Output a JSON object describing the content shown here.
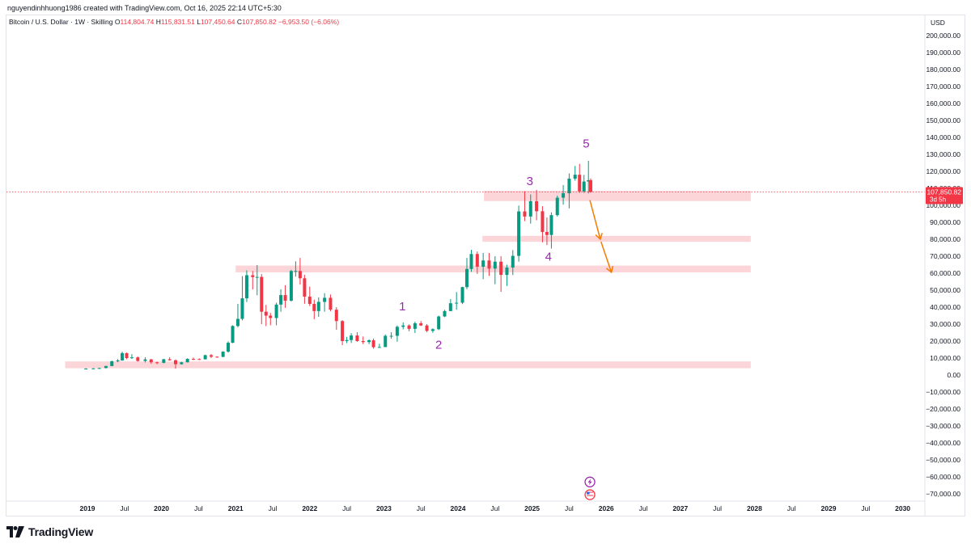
{
  "header": {
    "attribution": "nguyendinhhuong1986 created with TradingView.com, Oct 16, 2025 22:14 UTC+5:30"
  },
  "legend": {
    "symbol": "Bitcoin / U.S. Dollar · 1W · Skilling",
    "o_label": "O",
    "o_value": "114,804.74",
    "h_label": "H",
    "h_value": "115,831.51",
    "l_label": "L",
    "l_value": "107,450.64",
    "c_label": "C",
    "c_value": "107,850.82",
    "change": "−6,953.50 (−6.06%)"
  },
  "footer": {
    "brand": "TradingView"
  },
  "colors": {
    "up": "#089981",
    "down": "#f23645",
    "zone": "#f9c7cb",
    "wave_label": "#9c27b0",
    "arrow": "#f57c00",
    "price_line": "#f23645"
  },
  "chart_data": {
    "type": "candlestick",
    "currency_label": "USD",
    "y_ticks": [
      "200,000.00",
      "190,000.00",
      "180,000.00",
      "170,000.00",
      "160,000.00",
      "150,000.00",
      "140,000.00",
      "130,000.00",
      "120,000.00",
      "110,000.00",
      "100,000.00",
      "90,000.00",
      "80,000.00",
      "70,000.00",
      "60,000.00",
      "50,000.00",
      "40,000.00",
      "30,000.00",
      "20,000.00",
      "10,000.00",
      "0.00",
      "−10,000.00",
      "−20,000.00",
      "−30,000.00",
      "−40,000.00",
      "−50,000.00",
      "−60,000.00",
      "−70,000.00"
    ],
    "y_tick_values": [
      200000,
      190000,
      180000,
      170000,
      160000,
      150000,
      140000,
      130000,
      120000,
      110000,
      100000,
      90000,
      80000,
      70000,
      60000,
      50000,
      40000,
      30000,
      20000,
      10000,
      0,
      -10000,
      -20000,
      -30000,
      -40000,
      -50000,
      -60000,
      -70000
    ],
    "x_ticks": [
      {
        "t": 2019.0,
        "label": "2019"
      },
      {
        "t": 2019.5,
        "label": "Jul"
      },
      {
        "t": 2020.0,
        "label": "2020"
      },
      {
        "t": 2020.5,
        "label": "Jul"
      },
      {
        "t": 2021.0,
        "label": "2021"
      },
      {
        "t": 2021.5,
        "label": "Jul"
      },
      {
        "t": 2022.0,
        "label": "2022"
      },
      {
        "t": 2022.5,
        "label": "Jul"
      },
      {
        "t": 2023.0,
        "label": "2023"
      },
      {
        "t": 2023.5,
        "label": "Jul"
      },
      {
        "t": 2024.0,
        "label": "2024"
      },
      {
        "t": 2024.5,
        "label": "Jul"
      },
      {
        "t": 2025.0,
        "label": "2025"
      },
      {
        "t": 2025.5,
        "label": "Jul"
      },
      {
        "t": 2026.0,
        "label": "2026"
      },
      {
        "t": 2026.5,
        "label": "Jul"
      },
      {
        "t": 2027.0,
        "label": "2027"
      },
      {
        "t": 2027.5,
        "label": "Jul"
      },
      {
        "t": 2028.0,
        "label": "2028"
      },
      {
        "t": 2028.5,
        "label": "Jul"
      },
      {
        "t": 2029.0,
        "label": "2029"
      },
      {
        "t": 2029.5,
        "label": "Jul"
      },
      {
        "t": 2030.0,
        "label": "2030"
      }
    ],
    "last_price": {
      "value": 107850.82,
      "label": "107,850.82",
      "countdown": "3d 5h"
    },
    "zones": [
      {
        "t1": 2024.35,
        "t2": 2027.95,
        "low": 102500,
        "high": 108500
      },
      {
        "t1": 2024.33,
        "t2": 2027.95,
        "low": 78500,
        "high": 82000
      },
      {
        "t1": 2021.0,
        "t2": 2027.95,
        "low": 60500,
        "high": 64500
      },
      {
        "t1": 2018.7,
        "t2": 2027.95,
        "low": 4000,
        "high": 8000
      }
    ],
    "wave_labels": [
      {
        "text": "1",
        "t": 2023.25,
        "v": 38000
      },
      {
        "text": "2",
        "t": 2023.74,
        "v": 15500
      },
      {
        "text": "3",
        "t": 2024.97,
        "v": 112000
      },
      {
        "text": "4",
        "t": 2025.22,
        "v": 67500
      },
      {
        "text": "5",
        "t": 2025.73,
        "v": 134000
      }
    ],
    "arrows": [
      {
        "t1": 2025.78,
        "v1": 103000,
        "t2": 2025.92,
        "v2": 80000
      },
      {
        "t1": 2025.93,
        "v1": 78500,
        "t2": 2026.07,
        "v2": 60500
      }
    ],
    "event_icons": [
      {
        "name": "lightning-event",
        "t": 2025.78,
        "v": -63000
      },
      {
        "name": "us-flag-event",
        "t": 2025.78,
        "v": -70500
      }
    ],
    "candles": [
      {
        "t": 2018.98,
        "o": 3700,
        "h": 4000,
        "l": 3400,
        "c": 3800
      },
      {
        "t": 2019.08,
        "o": 3800,
        "h": 4100,
        "l": 3500,
        "c": 3900
      },
      {
        "t": 2019.16,
        "o": 3900,
        "h": 4300,
        "l": 3700,
        "c": 4100
      },
      {
        "t": 2019.25,
        "o": 4100,
        "h": 5400,
        "l": 4000,
        "c": 5300
      },
      {
        "t": 2019.33,
        "o": 5300,
        "h": 8500,
        "l": 5200,
        "c": 8100
      },
      {
        "t": 2019.41,
        "o": 8100,
        "h": 9400,
        "l": 7500,
        "c": 8600
      },
      {
        "t": 2019.47,
        "o": 8600,
        "h": 13800,
        "l": 8400,
        "c": 12900
      },
      {
        "t": 2019.53,
        "o": 12900,
        "h": 13200,
        "l": 9300,
        "c": 10000
      },
      {
        "t": 2019.6,
        "o": 10000,
        "h": 12300,
        "l": 9500,
        "c": 10400
      },
      {
        "t": 2019.68,
        "o": 10400,
        "h": 10900,
        "l": 7900,
        "c": 8300
      },
      {
        "t": 2019.78,
        "o": 8300,
        "h": 10500,
        "l": 7400,
        "c": 9200
      },
      {
        "t": 2019.86,
        "o": 9200,
        "h": 9500,
        "l": 6600,
        "c": 7500
      },
      {
        "t": 2019.94,
        "o": 7500,
        "h": 7900,
        "l": 6400,
        "c": 7200
      },
      {
        "t": 2020.03,
        "o": 7200,
        "h": 9500,
        "l": 6900,
        "c": 9300
      },
      {
        "t": 2020.11,
        "o": 9300,
        "h": 10500,
        "l": 8500,
        "c": 8700
      },
      {
        "t": 2020.19,
        "o": 8700,
        "h": 9200,
        "l": 3800,
        "c": 6400
      },
      {
        "t": 2020.27,
        "o": 6400,
        "h": 7800,
        "l": 6100,
        "c": 7500
      },
      {
        "t": 2020.35,
        "o": 7500,
        "h": 9900,
        "l": 7400,
        "c": 9500
      },
      {
        "t": 2020.43,
        "o": 9500,
        "h": 10300,
        "l": 8800,
        "c": 9400
      },
      {
        "t": 2020.51,
        "o": 9400,
        "h": 9800,
        "l": 8900,
        "c": 9300
      },
      {
        "t": 2020.59,
        "o": 9300,
        "h": 12000,
        "l": 9100,
        "c": 11700
      },
      {
        "t": 2020.67,
        "o": 11700,
        "h": 12400,
        "l": 10000,
        "c": 10800
      },
      {
        "t": 2020.75,
        "o": 10800,
        "h": 11000,
        "l": 10200,
        "c": 10700
      },
      {
        "t": 2020.83,
        "o": 10700,
        "h": 14000,
        "l": 10500,
        "c": 13800
      },
      {
        "t": 2020.9,
        "o": 13800,
        "h": 19800,
        "l": 13200,
        "c": 19000
      },
      {
        "t": 2020.96,
        "o": 19000,
        "h": 29300,
        "l": 18800,
        "c": 28900
      },
      {
        "t": 2021.03,
        "o": 28900,
        "h": 41900,
        "l": 28100,
        "c": 33100
      },
      {
        "t": 2021.09,
        "o": 33100,
        "h": 58300,
        "l": 32200,
        "c": 45200
      },
      {
        "t": 2021.15,
        "o": 45200,
        "h": 61700,
        "l": 43000,
        "c": 58800
      },
      {
        "t": 2021.23,
        "o": 58800,
        "h": 61300,
        "l": 50400,
        "c": 57700
      },
      {
        "t": 2021.29,
        "o": 57700,
        "h": 64800,
        "l": 47000,
        "c": 57800
      },
      {
        "t": 2021.35,
        "o": 57800,
        "h": 59500,
        "l": 30000,
        "c": 37300
      },
      {
        "t": 2021.41,
        "o": 37300,
        "h": 41300,
        "l": 28800,
        "c": 35000
      },
      {
        "t": 2021.47,
        "o": 35000,
        "h": 36600,
        "l": 29300,
        "c": 33600
      },
      {
        "t": 2021.55,
        "o": 33600,
        "h": 42600,
        "l": 29300,
        "c": 41500
      },
      {
        "t": 2021.61,
        "o": 41500,
        "h": 50500,
        "l": 37300,
        "c": 47100
      },
      {
        "t": 2021.67,
        "o": 47100,
        "h": 52900,
        "l": 39600,
        "c": 43800
      },
      {
        "t": 2021.75,
        "o": 43800,
        "h": 62000,
        "l": 43300,
        "c": 61300
      },
      {
        "t": 2021.81,
        "o": 61300,
        "h": 67000,
        "l": 58000,
        "c": 61300
      },
      {
        "t": 2021.87,
        "o": 61300,
        "h": 69000,
        "l": 53300,
        "c": 57000
      },
      {
        "t": 2021.93,
        "o": 57000,
        "h": 59000,
        "l": 42000,
        "c": 46200
      },
      {
        "t": 2022.0,
        "o": 46200,
        "h": 52100,
        "l": 40600,
        "c": 41900
      },
      {
        "t": 2022.06,
        "o": 41900,
        "h": 44400,
        "l": 32900,
        "c": 37700
      },
      {
        "t": 2022.12,
        "o": 37700,
        "h": 45800,
        "l": 34300,
        "c": 43100
      },
      {
        "t": 2022.2,
        "o": 43100,
        "h": 48200,
        "l": 37300,
        "c": 45500
      },
      {
        "t": 2022.28,
        "o": 45500,
        "h": 47400,
        "l": 37600,
        "c": 38500
      },
      {
        "t": 2022.36,
        "o": 38500,
        "h": 40000,
        "l": 26700,
        "c": 31800
      },
      {
        "t": 2022.44,
        "o": 31800,
        "h": 32400,
        "l": 17600,
        "c": 20000
      },
      {
        "t": 2022.5,
        "o": 20000,
        "h": 22500,
        "l": 18800,
        "c": 20600
      },
      {
        "t": 2022.56,
        "o": 20600,
        "h": 24600,
        "l": 18900,
        "c": 23300
      },
      {
        "t": 2022.64,
        "o": 23300,
        "h": 25200,
        "l": 19600,
        "c": 20000
      },
      {
        "t": 2022.72,
        "o": 20000,
        "h": 22700,
        "l": 18200,
        "c": 19400
      },
      {
        "t": 2022.8,
        "o": 19400,
        "h": 21000,
        "l": 18200,
        "c": 20500
      },
      {
        "t": 2022.86,
        "o": 20500,
        "h": 21500,
        "l": 15500,
        "c": 16400
      },
      {
        "t": 2022.94,
        "o": 16400,
        "h": 18400,
        "l": 16300,
        "c": 16500
      },
      {
        "t": 2023.02,
        "o": 16500,
        "h": 23900,
        "l": 16400,
        "c": 23100
      },
      {
        "t": 2023.1,
        "o": 23100,
        "h": 25200,
        "l": 21400,
        "c": 23100
      },
      {
        "t": 2023.18,
        "o": 23100,
        "h": 29200,
        "l": 19600,
        "c": 28400
      },
      {
        "t": 2023.26,
        "o": 28400,
        "h": 31000,
        "l": 26900,
        "c": 29200
      },
      {
        "t": 2023.34,
        "o": 29200,
        "h": 29800,
        "l": 25800,
        "c": 27200
      },
      {
        "t": 2023.42,
        "o": 27200,
        "h": 31400,
        "l": 24800,
        "c": 30500
      },
      {
        "t": 2023.5,
        "o": 30500,
        "h": 31800,
        "l": 28900,
        "c": 29200
      },
      {
        "t": 2023.58,
        "o": 29200,
        "h": 30000,
        "l": 25300,
        "c": 26000
      },
      {
        "t": 2023.66,
        "o": 26000,
        "h": 27500,
        "l": 24900,
        "c": 27000
      },
      {
        "t": 2023.74,
        "o": 27000,
        "h": 35000,
        "l": 26500,
        "c": 34500
      },
      {
        "t": 2023.82,
        "o": 34500,
        "h": 38400,
        "l": 34100,
        "c": 37700
      },
      {
        "t": 2023.9,
        "o": 37700,
        "h": 44700,
        "l": 37600,
        "c": 42300
      },
      {
        "t": 2023.98,
        "o": 42300,
        "h": 48900,
        "l": 38500,
        "c": 42600
      },
      {
        "t": 2024.06,
        "o": 42600,
        "h": 52000,
        "l": 41800,
        "c": 51800
      },
      {
        "t": 2024.12,
        "o": 51800,
        "h": 69000,
        "l": 50600,
        "c": 62500
      },
      {
        "t": 2024.18,
        "o": 62500,
        "h": 73800,
        "l": 60800,
        "c": 71300
      },
      {
        "t": 2024.26,
        "o": 71300,
        "h": 72800,
        "l": 59600,
        "c": 63800
      },
      {
        "t": 2024.34,
        "o": 63800,
        "h": 71900,
        "l": 56500,
        "c": 67500
      },
      {
        "t": 2024.42,
        "o": 67500,
        "h": 71900,
        "l": 58400,
        "c": 62700
      },
      {
        "t": 2024.5,
        "o": 62700,
        "h": 70000,
        "l": 53500,
        "c": 66800
      },
      {
        "t": 2024.58,
        "o": 66800,
        "h": 70000,
        "l": 49000,
        "c": 59000
      },
      {
        "t": 2024.66,
        "o": 59000,
        "h": 65000,
        "l": 52500,
        "c": 63300
      },
      {
        "t": 2024.74,
        "o": 63300,
        "h": 73600,
        "l": 58900,
        "c": 70200
      },
      {
        "t": 2024.82,
        "o": 70200,
        "h": 99800,
        "l": 66800,
        "c": 96400
      },
      {
        "t": 2024.9,
        "o": 96400,
        "h": 108300,
        "l": 90700,
        "c": 93400
      },
      {
        "t": 2024.98,
        "o": 93400,
        "h": 106400,
        "l": 89200,
        "c": 102400
      },
      {
        "t": 2025.06,
        "o": 102400,
        "h": 109100,
        "l": 91200,
        "c": 96500
      },
      {
        "t": 2025.14,
        "o": 96500,
        "h": 99500,
        "l": 78200,
        "c": 84300
      },
      {
        "t": 2025.2,
        "o": 84300,
        "h": 92800,
        "l": 76600,
        "c": 82500
      },
      {
        "t": 2025.26,
        "o": 82500,
        "h": 95800,
        "l": 74500,
        "c": 94200
      },
      {
        "t": 2025.34,
        "o": 94200,
        "h": 105700,
        "l": 93400,
        "c": 104500
      },
      {
        "t": 2025.42,
        "o": 104500,
        "h": 111900,
        "l": 100400,
        "c": 107100
      },
      {
        "t": 2025.5,
        "o": 107100,
        "h": 118800,
        "l": 98200,
        "c": 115700
      },
      {
        "t": 2025.58,
        "o": 115700,
        "h": 123200,
        "l": 114500,
        "c": 118000
      },
      {
        "t": 2025.64,
        "o": 118000,
        "h": 124400,
        "l": 107300,
        "c": 108200
      },
      {
        "t": 2025.7,
        "o": 108200,
        "h": 117900,
        "l": 107300,
        "c": 114000
      },
      {
        "t": 2025.76,
        "o": 114000,
        "h": 126200,
        "l": 107000,
        "c": 114800
      },
      {
        "t": 2025.79,
        "o": 114800,
        "h": 115800,
        "l": 107450,
        "c": 107850
      }
    ]
  }
}
